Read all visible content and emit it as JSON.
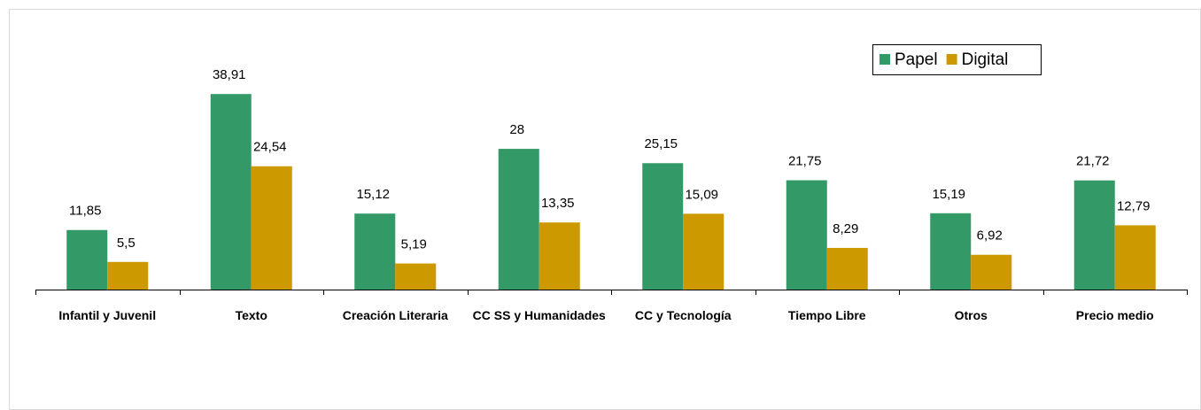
{
  "chart_data": {
    "type": "bar",
    "categories": [
      "Infantil y Juvenil",
      "Texto",
      "Creación Literaria",
      "CC SS y Humanidades",
      "CC y Tecnología",
      "Tiempo Libre",
      "Otros",
      "Precio medio"
    ],
    "series": [
      {
        "name": "Papel",
        "color": "#339966",
        "values": [
          11.85,
          38.91,
          15.12,
          28,
          25.15,
          21.75,
          15.19,
          21.72
        ],
        "value_labels": [
          "11,85",
          "38,91",
          "15,12",
          "28",
          "25,15",
          "21,75",
          "15,19",
          "21,72"
        ]
      },
      {
        "name": "Digital",
        "color": "#cc9900",
        "values": [
          5.5,
          24.54,
          5.19,
          13.35,
          15.09,
          8.29,
          6.92,
          12.79
        ],
        "value_labels": [
          "5,5",
          "24,54",
          "5,19",
          "13,35",
          "15,09",
          "8,29",
          "6,92",
          "12,79"
        ]
      }
    ],
    "ylim": [
      0,
      40
    ],
    "legend": "top-right"
  }
}
